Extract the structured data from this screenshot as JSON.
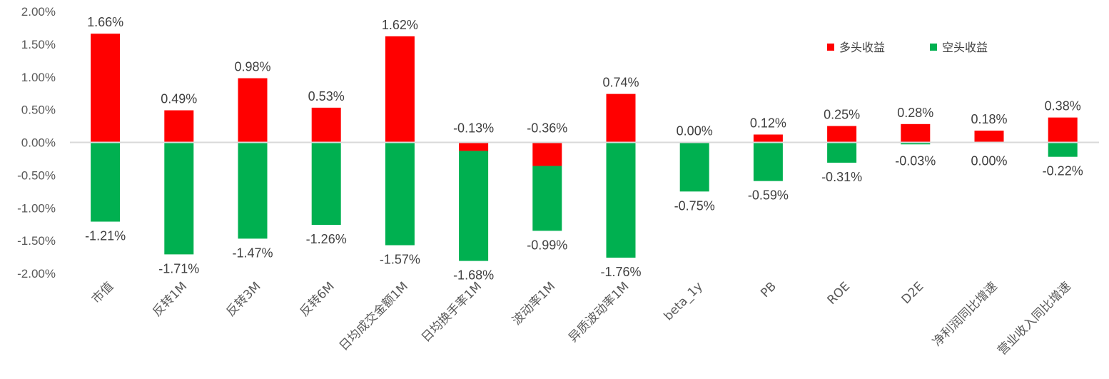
{
  "chart_data": {
    "type": "bar",
    "stacked": true,
    "title": "",
    "xlabel": "",
    "ylabel": "",
    "ylim": [
      -0.02,
      0.02
    ],
    "yticks": [
      "2.00%",
      "1.50%",
      "1.00%",
      "0.50%",
      "0.00%",
      "-0.50%",
      "-1.00%",
      "-1.50%",
      "-2.00%"
    ],
    "ytick_values": [
      0.02,
      0.015,
      0.01,
      0.005,
      0,
      -0.005,
      -0.01,
      -0.015,
      -0.02
    ],
    "categories": [
      "市值",
      "反转1M",
      "反转3M",
      "反转6M",
      "日均成交金额1M",
      "日均换手率1M",
      "波动率1M",
      "异质波动率1M",
      "beta_1y",
      "PB",
      "ROE",
      "D2E",
      "净利润同比增速",
      "营业收入同比增速"
    ],
    "series": [
      {
        "name": "多头收益",
        "color": "#ff0000",
        "values": [
          0.0166,
          0.0049,
          0.0098,
          0.0053,
          0.0162,
          -0.0013,
          -0.0036,
          0.0074,
          0.0,
          0.0012,
          0.0025,
          0.0028,
          0.0018,
          0.0038
        ],
        "labels": [
          "1.66%",
          "0.49%",
          "0.98%",
          "0.53%",
          "1.62%",
          "-0.13%",
          "-0.36%",
          "0.74%",
          "0.00%",
          "0.12%",
          "0.25%",
          "0.28%",
          "0.18%",
          "0.38%"
        ]
      },
      {
        "name": "空头收益",
        "color": "#00b050",
        "values": [
          -0.0121,
          -0.0171,
          -0.0147,
          -0.0126,
          -0.0157,
          -0.0168,
          -0.0099,
          -0.0176,
          -0.0075,
          -0.0059,
          -0.0031,
          -0.0003,
          0.0,
          -0.0022
        ],
        "labels": [
          "-1.21%",
          "-1.71%",
          "-1.47%",
          "-1.26%",
          "-1.57%",
          "-1.68%",
          "-0.99%",
          "-1.76%",
          "-0.75%",
          "-0.59%",
          "-0.31%",
          "-0.03%",
          "0.00%",
          "-0.22%"
        ]
      }
    ],
    "legend_position": "top-right",
    "grid": false
  }
}
